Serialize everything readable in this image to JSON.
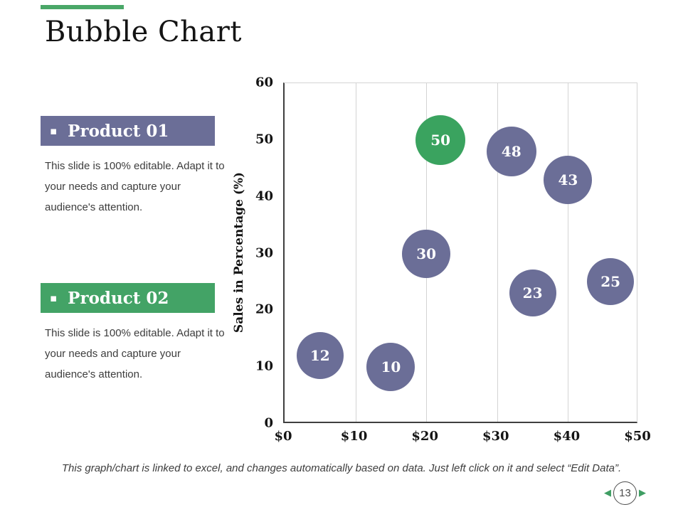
{
  "slide": {
    "title": "Bubble Chart",
    "footer": "This graph/chart is linked to excel, and changes automatically based on data. Just left click on it and select “Edit Data”."
  },
  "icons": {
    "bullet_square": "▪",
    "prev_arrow": "◀",
    "next_arrow": "▶"
  },
  "pager": {
    "page_number": "13"
  },
  "products": [
    {
      "label": "Product 01",
      "color": "#6b6e97",
      "description": "This slide is 100% editable. Adapt it to your needs and capture your audience's attention."
    },
    {
      "label": "Product 02",
      "color": "#43a366",
      "description": "This slide is 100% editable. Adapt it to your needs and capture your audience's attention."
    }
  ],
  "colors": {
    "accent_bar_green": "#4aa768",
    "bubble_purple": "#6b6e97",
    "bubble_green": "#3aa35f",
    "axis_line": "#3f3f3f",
    "gridline": "#d4d4d4",
    "pager_arrow_green": "#3f9e63"
  },
  "chart_data": {
    "type": "scatter",
    "subtype": "bubble",
    "title": "",
    "xlabel": "",
    "ylabel": "Sales in Percentage (%)",
    "xlim": [
      0,
      50
    ],
    "ylim": [
      0,
      60
    ],
    "grid": "vertical-only",
    "legend": "none",
    "x_ticks": [
      {
        "value": 0,
        "label": "$0"
      },
      {
        "value": 10,
        "label": "$10"
      },
      {
        "value": 20,
        "label": "$20"
      },
      {
        "value": 30,
        "label": "$30"
      },
      {
        "value": 40,
        "label": "$40"
      },
      {
        "value": 50,
        "label": "$50"
      }
    ],
    "y_ticks": [
      {
        "value": 0,
        "label": "0"
      },
      {
        "value": 10,
        "label": "10"
      },
      {
        "value": 20,
        "label": "20"
      },
      {
        "value": 30,
        "label": "30"
      },
      {
        "value": 40,
        "label": "40"
      },
      {
        "value": 50,
        "label": "50"
      },
      {
        "value": 60,
        "label": "60"
      }
    ],
    "series": [
      {
        "name": "Product 01",
        "color": "#6b6e97",
        "points": [
          {
            "x": 5,
            "y": 12,
            "label": "12",
            "r": 33
          },
          {
            "x": 15,
            "y": 10,
            "label": "10",
            "r": 34
          },
          {
            "x": 20,
            "y": 30,
            "label": "30",
            "r": 34
          },
          {
            "x": 32,
            "y": 48,
            "label": "48",
            "r": 35
          },
          {
            "x": 35,
            "y": 23,
            "label": "23",
            "r": 33
          },
          {
            "x": 40,
            "y": 43,
            "label": "43",
            "r": 34
          },
          {
            "x": 46,
            "y": 25,
            "label": "25",
            "r": 33
          }
        ]
      },
      {
        "name": "Product 02",
        "color": "#3aa35f",
        "points": [
          {
            "x": 22,
            "y": 50,
            "label": "50",
            "r": 35
          }
        ]
      }
    ]
  }
}
